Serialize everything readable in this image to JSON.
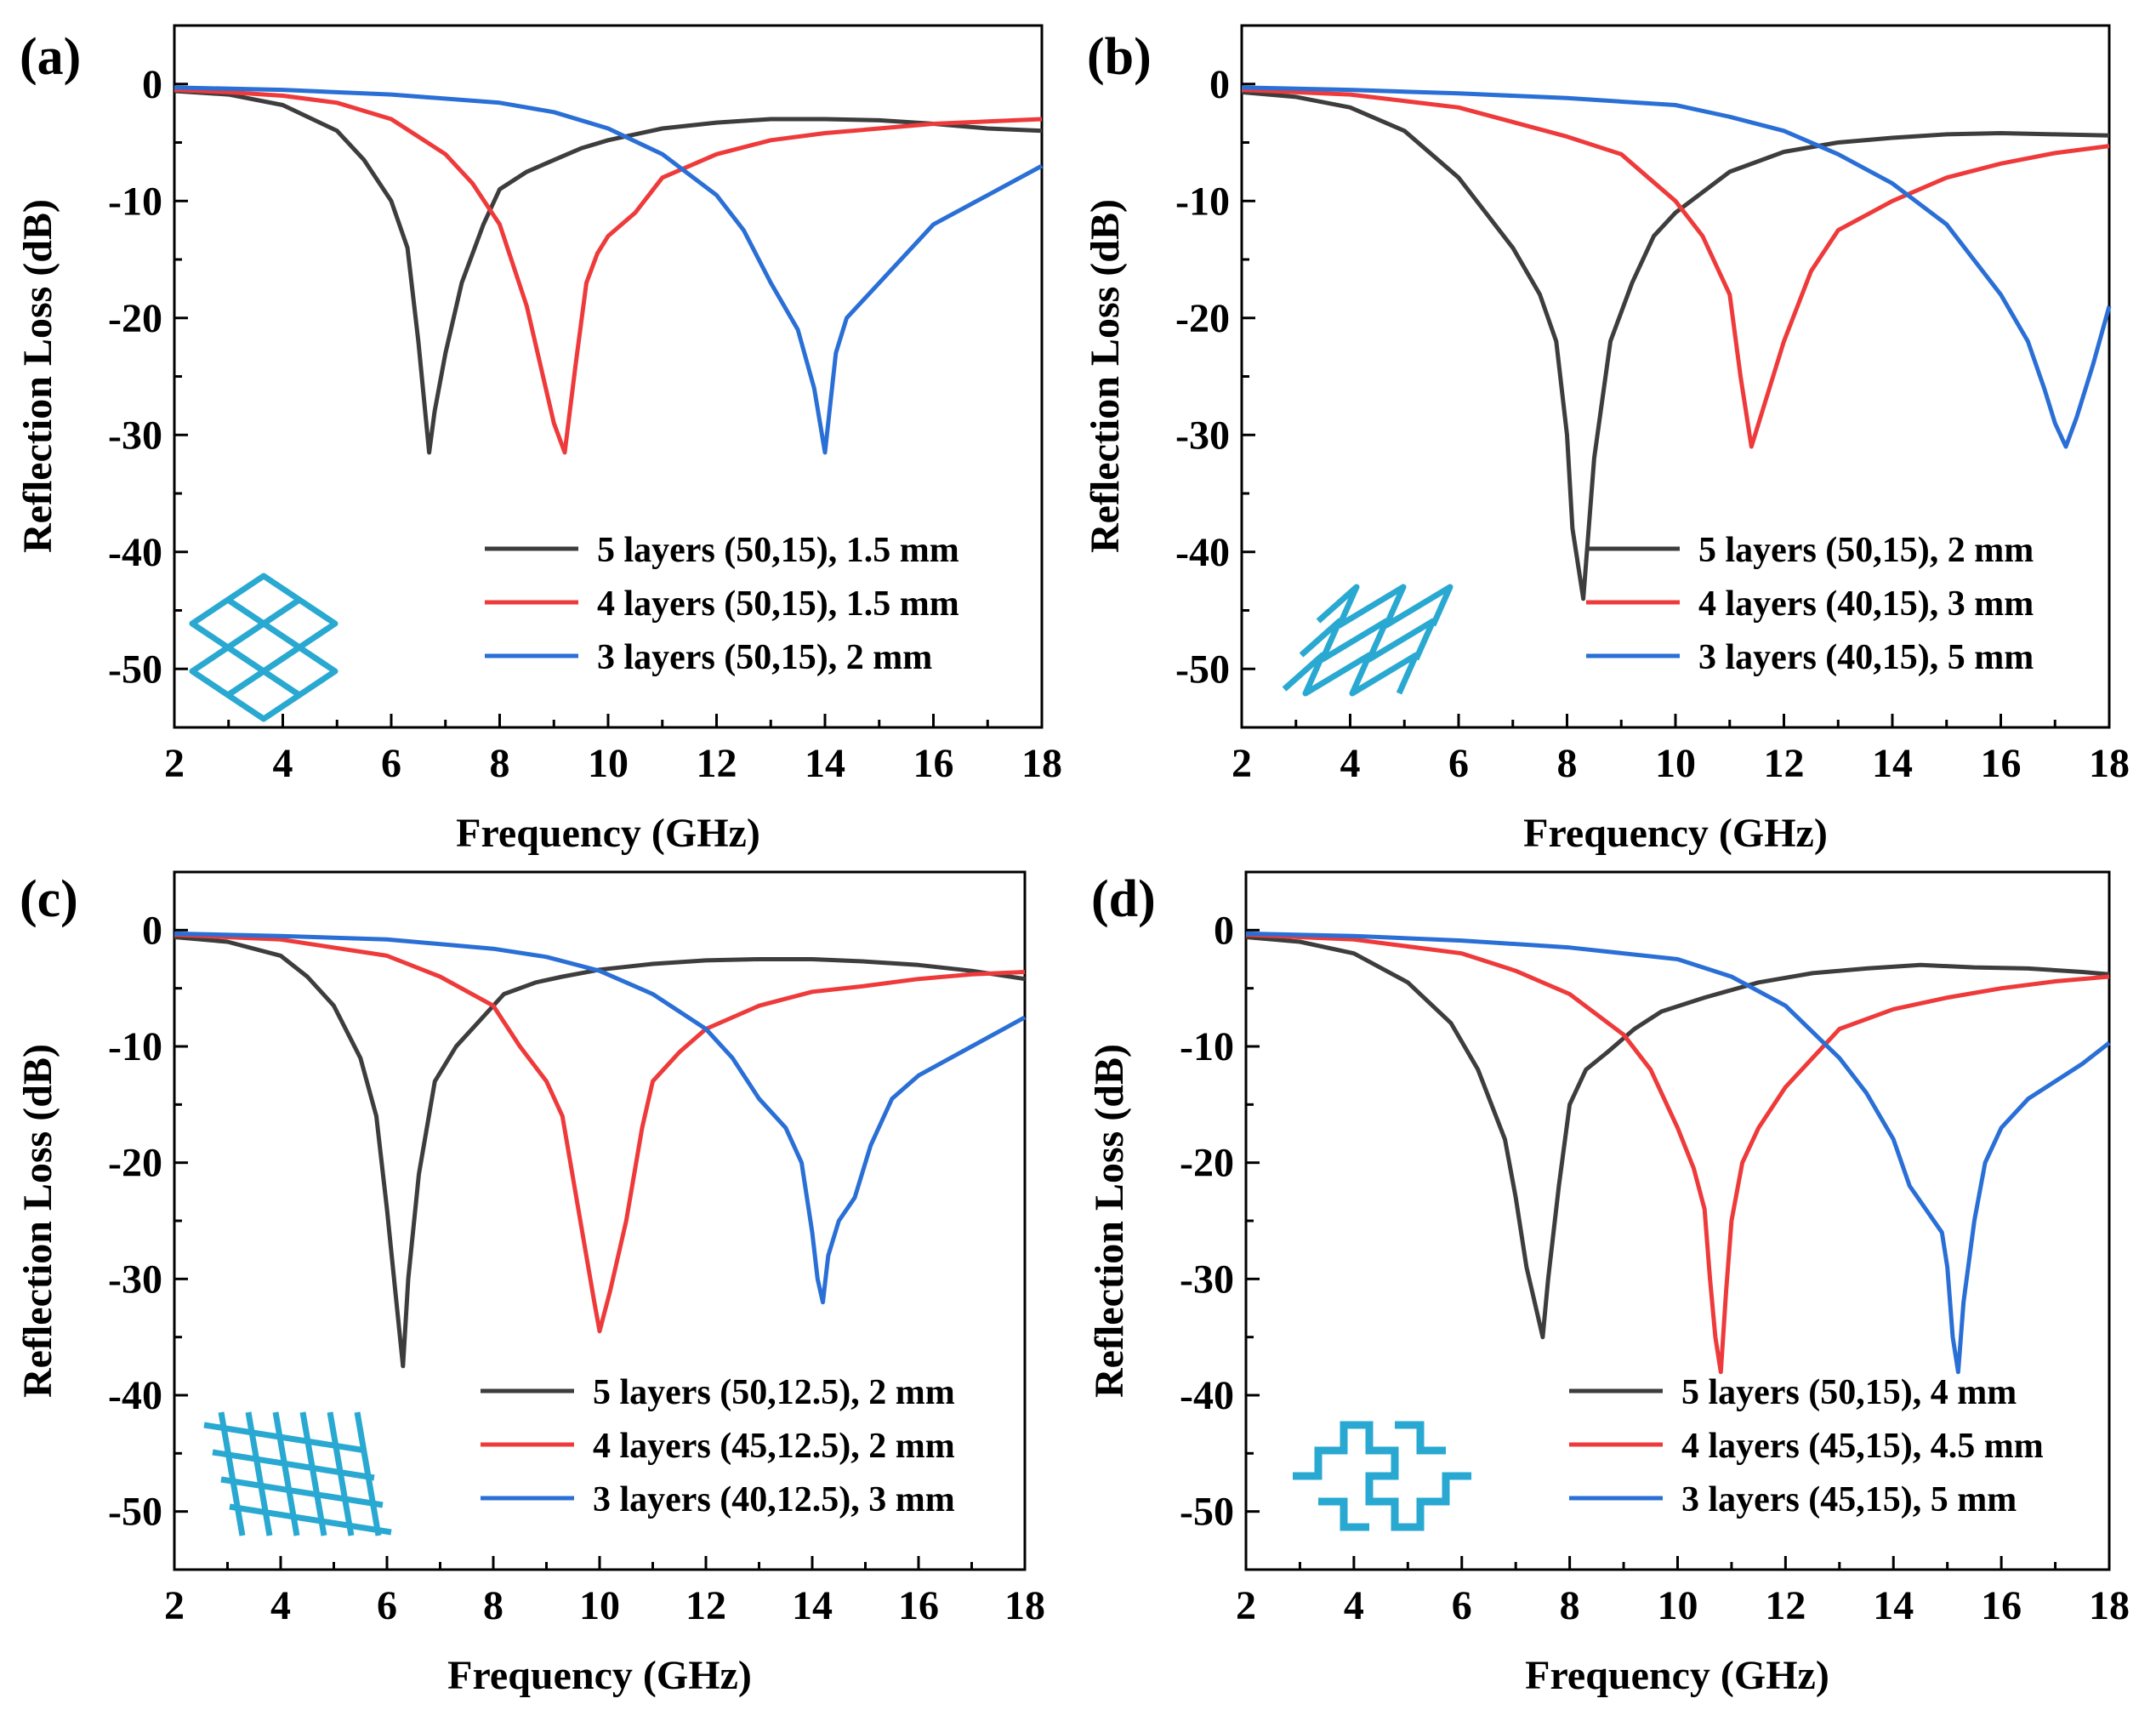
{
  "chart_data": [
    {
      "type": "line",
      "panel_label": "(a)",
      "xlabel": "Frequency (GHz)",
      "ylabel": "Reflection Loss (dB)",
      "xlim": [
        2,
        18
      ],
      "ylim": [
        -55,
        5
      ],
      "xticks": [
        "2",
        "4",
        "6",
        "8",
        "10",
        "12",
        "14",
        "16",
        "18"
      ],
      "yticks": [
        "0",
        "-10",
        "-20",
        "-30",
        "-40",
        "-50"
      ],
      "inset": "diamond-grid",
      "series": [
        {
          "name": "5 layers (50,15), 1.5 mm",
          "color": "#3d3d3d",
          "x": [
            2,
            3,
            4,
            5,
            5.5,
            6,
            6.3,
            6.5,
            6.7,
            6.8,
            7,
            7.3,
            7.7,
            8,
            8.5,
            9,
            9.5,
            10,
            11,
            12,
            13,
            14,
            15,
            16,
            17,
            18
          ],
          "y": [
            -0.6,
            -0.9,
            -1.8,
            -4,
            -6.5,
            -10,
            -14,
            -22,
            -31.5,
            -28,
            -23,
            -17,
            -12,
            -9,
            -7.5,
            -6.5,
            -5.5,
            -4.8,
            -3.8,
            -3.3,
            -3,
            -3,
            -3.1,
            -3.4,
            -3.8,
            -4
          ]
        },
        {
          "name": "4 layers (50,15), 1.5 mm",
          "color": "#ee3a3a",
          "x": [
            2,
            3,
            4,
            5,
            6,
            6.5,
            7,
            7.5,
            8,
            8.5,
            8.8,
            9,
            9.2,
            9.4,
            9.6,
            9.8,
            10,
            10.5,
            11,
            12,
            13,
            14,
            15,
            16,
            17,
            18
          ],
          "y": [
            -0.5,
            -0.7,
            -1,
            -1.6,
            -3,
            -4.5,
            -6,
            -8.5,
            -12,
            -19,
            -25,
            -29,
            -31.5,
            -24,
            -17,
            -14.5,
            -13,
            -11,
            -8,
            -6,
            -4.8,
            -4.2,
            -3.8,
            -3.4,
            -3.2,
            -3
          ]
        },
        {
          "name": "3 layers (50,15), 2 mm",
          "color": "#2a6fd6",
          "x": [
            2,
            4,
            6,
            8,
            9,
            10,
            11,
            12,
            12.5,
            13,
            13.5,
            13.8,
            14,
            14.2,
            14.4,
            14.8,
            15.2,
            16,
            17,
            18
          ],
          "y": [
            -0.3,
            -0.5,
            -0.9,
            -1.6,
            -2.4,
            -3.8,
            -6,
            -9.5,
            -12.5,
            -17,
            -21,
            -26,
            -31.5,
            -23,
            -20,
            -18,
            -16,
            -12,
            -9.5,
            -7
          ]
        }
      ]
    },
    {
      "type": "line",
      "panel_label": "(b)",
      "xlabel": "Frequency (GHz)",
      "ylabel": "Reflection Loss (dB)",
      "xlim": [
        2,
        18
      ],
      "ylim": [
        -55,
        5
      ],
      "xticks": [
        "2",
        "4",
        "6",
        "8",
        "10",
        "12",
        "14",
        "16",
        "18"
      ],
      "yticks": [
        "0",
        "-10",
        "-20",
        "-30",
        "-40",
        "-50"
      ],
      "inset": "zigzag-arrows",
      "series": [
        {
          "name": "5 layers (50,15), 2 mm",
          "color": "#3d3d3d",
          "x": [
            2,
            3,
            4,
            5,
            6,
            6.5,
            7,
            7.5,
            7.8,
            8,
            8.1,
            8.3,
            8.5,
            8.8,
            9.2,
            9.6,
            10,
            11,
            12,
            13,
            14,
            15,
            16,
            17,
            18
          ],
          "y": [
            -0.7,
            -1.1,
            -2,
            -4,
            -8,
            -11,
            -14,
            -18,
            -22,
            -30,
            -38,
            -44,
            -32,
            -22,
            -17,
            -13,
            -11,
            -7.5,
            -5.8,
            -5,
            -4.6,
            -4.3,
            -4.2,
            -4.3,
            -4.4
          ]
        },
        {
          "name": "4 layers (40,15), 3 mm",
          "color": "#ee3a3a",
          "x": [
            2,
            4,
            6,
            8,
            9,
            9.5,
            10,
            10.5,
            11,
            11.2,
            11.4,
            11.6,
            12,
            12.5,
            13,
            14,
            15,
            16,
            17,
            18
          ],
          "y": [
            -0.5,
            -0.9,
            -2,
            -4.5,
            -6,
            -8,
            -10,
            -13,
            -18,
            -25,
            -31,
            -28,
            -22,
            -16,
            -12.5,
            -10,
            -8,
            -6.8,
            -5.9,
            -5.3
          ]
        },
        {
          "name": "3 layers (40,15), 5 mm",
          "color": "#2a6fd6",
          "x": [
            2,
            4,
            6,
            8,
            10,
            11,
            12,
            13,
            14,
            15,
            15.5,
            16,
            16.5,
            16.8,
            17,
            17.2,
            17.4,
            17.7,
            18
          ],
          "y": [
            -0.3,
            -0.5,
            -0.8,
            -1.2,
            -1.8,
            -2.8,
            -4,
            -6,
            -8.5,
            -12,
            -15,
            -18,
            -22,
            -26,
            -29,
            -31,
            -28.5,
            -24,
            -19
          ]
        }
      ]
    },
    {
      "type": "line",
      "panel_label": "(c)",
      "xlabel": "Frequency (GHz)",
      "ylabel": "Reflection Loss (dB)",
      "xlim": [
        2,
        18
      ],
      "ylim": [
        -55,
        5
      ],
      "xticks": [
        "2",
        "4",
        "6",
        "8",
        "10",
        "12",
        "14",
        "16",
        "18"
      ],
      "yticks": [
        "0",
        "-10",
        "-20",
        "-30",
        "-40",
        "-50"
      ],
      "inset": "truss-lattice",
      "series": [
        {
          "name": "5 layers (50,12.5), 2 mm",
          "color": "#3d3d3d",
          "x": [
            2,
            3,
            4,
            4.5,
            5,
            5.5,
            5.8,
            6,
            6.2,
            6.3,
            6.4,
            6.6,
            6.9,
            7.3,
            7.7,
            8.2,
            8.8,
            9.3,
            10,
            11,
            12,
            13,
            14,
            15,
            16,
            17,
            18
          ],
          "y": [
            -0.6,
            -1,
            -2.2,
            -4,
            -6.5,
            -11,
            -16,
            -24,
            -33,
            -37.5,
            -30,
            -21,
            -13,
            -10,
            -8,
            -5.5,
            -4.5,
            -4,
            -3.4,
            -2.9,
            -2.6,
            -2.5,
            -2.5,
            -2.7,
            -3,
            -3.5,
            -4.2
          ]
        },
        {
          "name": "4 layers (45,12.5), 2 mm",
          "color": "#ee3a3a",
          "x": [
            2,
            4,
            6,
            7,
            8,
            8.5,
            9,
            9.3,
            9.6,
            9.9,
            10,
            10.2,
            10.5,
            10.8,
            11,
            11.5,
            12,
            13,
            14,
            15,
            16,
            17,
            18
          ],
          "y": [
            -0.4,
            -0.8,
            -2.2,
            -4,
            -6.5,
            -10,
            -13,
            -16,
            -24,
            -32,
            -34.5,
            -31,
            -25,
            -17,
            -13,
            -10.5,
            -8.5,
            -6.5,
            -5.3,
            -4.8,
            -4.2,
            -3.8,
            -3.6
          ]
        },
        {
          "name": "3 layers (40,12.5), 3 mm",
          "color": "#2a6fd6",
          "x": [
            2,
            4,
            6,
            8,
            9,
            10,
            11,
            11.5,
            12,
            12.5,
            13,
            13.5,
            13.8,
            14,
            14.1,
            14.2,
            14.3,
            14.5,
            14.8,
            15.1,
            15.5,
            16,
            17,
            18
          ],
          "y": [
            -0.3,
            -0.5,
            -0.8,
            -1.6,
            -2.3,
            -3.5,
            -5.5,
            -7,
            -8.5,
            -11,
            -14.5,
            -17,
            -20,
            -26,
            -30,
            -32,
            -28,
            -25,
            -23,
            -18.5,
            -14.5,
            -12.5,
            -10,
            -7.5
          ]
        }
      ]
    },
    {
      "type": "line",
      "panel_label": "(d)",
      "xlabel": "Frequency (GHz)",
      "ylabel": "Reflection Loss (dB)",
      "xlim": [
        2,
        18
      ],
      "ylim": [
        -55,
        5
      ],
      "xticks": [
        "2",
        "4",
        "6",
        "8",
        "10",
        "12",
        "14",
        "16",
        "18"
      ],
      "yticks": [
        "0",
        "-10",
        "-20",
        "-30",
        "-40",
        "-50"
      ],
      "inset": "hilbert-curve",
      "series": [
        {
          "name": "5 layers (50,15), 4 mm",
          "color": "#3d3d3d",
          "x": [
            2,
            3,
            4,
            5,
            5.8,
            6.3,
            6.8,
            7,
            7.2,
            7.4,
            7.5,
            7.6,
            7.8,
            8,
            8.3,
            8.7,
            9.2,
            9.7,
            10.5,
            11.5,
            12.5,
            13.5,
            14.5,
            15.5,
            16.5,
            17.5,
            18
          ],
          "y": [
            -0.6,
            -1,
            -2,
            -4.5,
            -8,
            -12,
            -18,
            -23,
            -29,
            -33,
            -35,
            -30,
            -22,
            -15,
            -12,
            -10.5,
            -8.5,
            -7,
            -5.8,
            -4.5,
            -3.7,
            -3.3,
            -3,
            -3.2,
            -3.3,
            -3.6,
            -3.8
          ]
        },
        {
          "name": "4 layers (45,15), 4.5 mm",
          "color": "#ee3a3a",
          "x": [
            2,
            4,
            6,
            7,
            8,
            9,
            9.5,
            10,
            10.3,
            10.5,
            10.6,
            10.7,
            10.8,
            10.9,
            11,
            11.2,
            11.5,
            12,
            13,
            14,
            15,
            16,
            17,
            18
          ],
          "y": [
            -0.4,
            -0.8,
            -2,
            -3.5,
            -5.5,
            -9,
            -12,
            -17,
            -20.5,
            -24,
            -30,
            -35,
            -38,
            -31,
            -25,
            -20,
            -17,
            -13.5,
            -8.5,
            -6.8,
            -5.8,
            -5,
            -4.4,
            -4
          ]
        },
        {
          "name": "3 layers (45,15), 5 mm",
          "color": "#2a6fd6",
          "x": [
            2,
            4,
            6,
            8,
            10,
            11,
            12,
            13,
            13.5,
            14,
            14.3,
            14.6,
            14.9,
            15,
            15.1,
            15.2,
            15.3,
            15.5,
            15.7,
            16,
            16.5,
            17,
            17.5,
            18
          ],
          "y": [
            -0.3,
            -0.5,
            -0.9,
            -1.5,
            -2.5,
            -4,
            -6.5,
            -11,
            -14,
            -18,
            -22,
            -24,
            -26,
            -29,
            -35,
            -38,
            -32,
            -25,
            -20,
            -17,
            -14.5,
            -13,
            -11.5,
            -9.7
          ]
        }
      ]
    }
  ]
}
